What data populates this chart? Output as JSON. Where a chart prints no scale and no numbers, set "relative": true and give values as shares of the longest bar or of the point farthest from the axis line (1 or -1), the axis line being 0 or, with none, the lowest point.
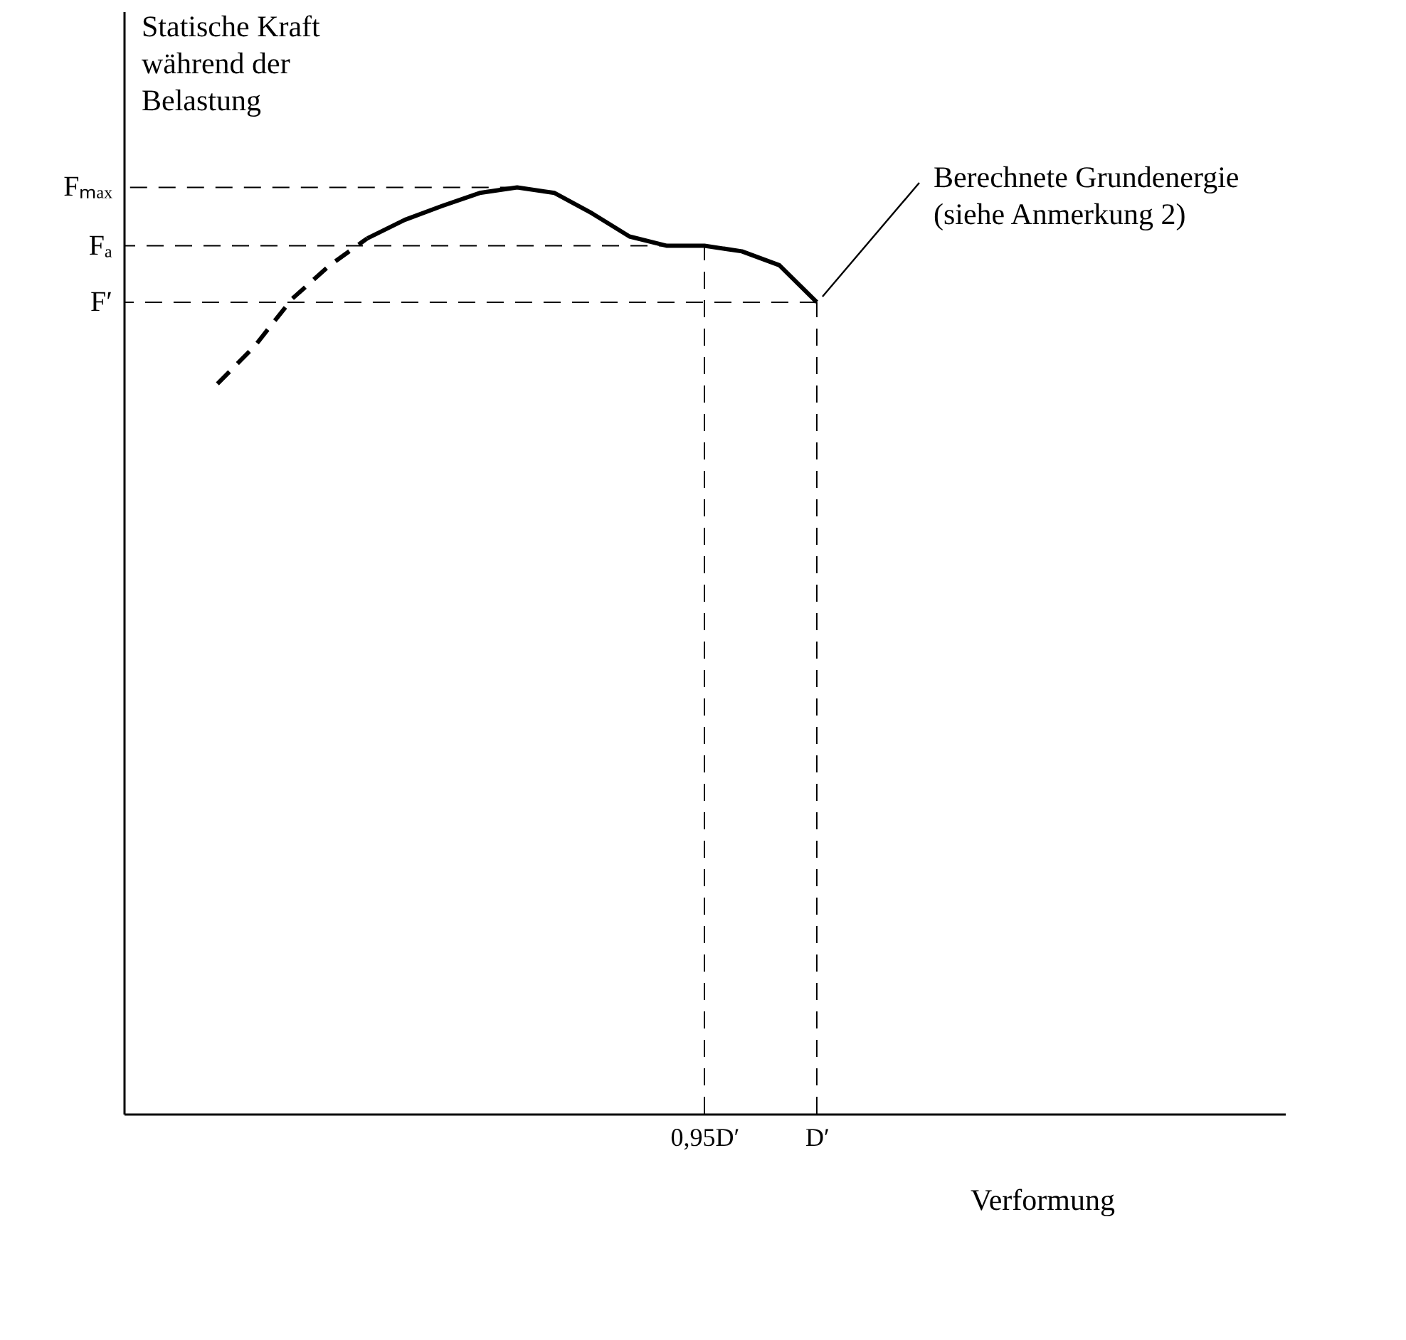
{
  "chart_data": {
    "type": "line",
    "relative": true,
    "tick_labels": "x",
    "ylabel": "Statische Kraft\nwährend der\nBelastung",
    "xlabel": "Verformung",
    "categories": [
      null,
      null,
      null,
      null,
      null,
      null,
      null,
      null,
      null,
      null,
      null,
      null,
      null,
      null,
      null,
      "0,95D′",
      null,
      null,
      "D′",
      null,
      null,
      null,
      null,
      null,
      null,
      null,
      null,
      null,
      null,
      null,
      null
    ],
    "series": [
      {
        "color": "#000000",
        "line_style": "dashed",
        "values": [
          null,
          null,
          0.788,
          0.829,
          0.88,
          0.916,
          0.945,
          null,
          null,
          null,
          null,
          null,
          null,
          null,
          null,
          null,
          null,
          null,
          null,
          null,
          null,
          null,
          null,
          null,
          null,
          null,
          null,
          null,
          null,
          null,
          null
        ]
      },
      {
        "color": "#000000",
        "line_style": "solid",
        "values": [
          null,
          null,
          null,
          null,
          null,
          null,
          0.945,
          0.965,
          0.98,
          0.994,
          1.0,
          0.994,
          0.972,
          0.947,
          0.937,
          0.937,
          0.931,
          0.916,
          0.876,
          null,
          null,
          null,
          null,
          null,
          null,
          null,
          null,
          null,
          null,
          null,
          null
        ]
      }
    ],
    "ref_lines": [
      {
        "axis": "y",
        "value": 1.0,
        "label": "Fₘₐₓ",
        "line_style": "dashed"
      },
      {
        "axis": "y",
        "value": 0.937,
        "label": "Fₐ",
        "line_style": "dashed"
      },
      {
        "axis": "y",
        "value": 0.876,
        "label": "F′",
        "line_style": "dashed"
      },
      {
        "axis": "x",
        "value": "0,95D′",
        "line_style": "dashed"
      },
      {
        "axis": "x",
        "value": "D′",
        "line_style": "dashed"
      }
    ],
    "annotations": [
      {
        "text": "Berechnete Grundenergie\n(siehe Anmerkung 2)",
        "x": "D′",
        "y": 0.876
      }
    ]
  }
}
